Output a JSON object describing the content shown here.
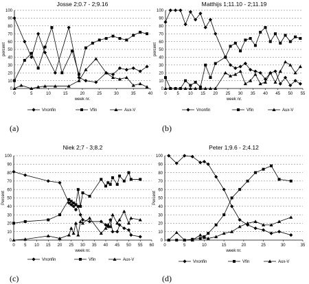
{
  "figure": {
    "captions": [
      "(a)",
      "(b)",
      "(c)",
      "(d)"
    ]
  },
  "chart_data": [
    {
      "type": "line",
      "title": "Josse 2;0.7 - 2;9.16",
      "xlabel": "week nr.",
      "ylabel": "percent",
      "xlim": [
        0,
        40
      ],
      "ylim": [
        0,
        100
      ],
      "xticks": [
        0,
        5,
        10,
        15,
        20,
        25,
        30,
        35,
        40
      ],
      "yticks": [
        0,
        10,
        20,
        30,
        40,
        50,
        60,
        70,
        80,
        90,
        100
      ],
      "grid": "horizontal dashed",
      "legend": "bottom",
      "series": [
        {
          "name": "Vnonfin",
          "marker": "diamond",
          "x": [
            0,
            3,
            5,
            7,
            9,
            12,
            16,
            19,
            21,
            24,
            27,
            29,
            31,
            33,
            35,
            37,
            39
          ],
          "y": [
            90,
            60,
            40,
            70,
            46,
            20,
            78,
            14,
            10,
            8,
            20,
            18,
            26,
            24,
            26,
            22,
            28
          ]
        },
        {
          "name": "Vfin",
          "marker": "square",
          "x": [
            0,
            3,
            5,
            7,
            9,
            11,
            14,
            17,
            19,
            21,
            23,
            25,
            27,
            29,
            31,
            33,
            35,
            37,
            39
          ],
          "y": [
            10,
            36,
            45,
            26,
            53,
            78,
            20,
            48,
            18,
            52,
            58,
            62,
            64,
            67,
            64,
            62,
            68,
            72,
            70
          ]
        },
        {
          "name": "Aux-V",
          "marker": "triangle",
          "x": [
            0,
            2,
            5,
            7,
            9,
            12,
            16,
            19,
            21,
            24,
            27,
            29,
            31,
            33,
            35,
            37,
            39
          ],
          "y": [
            0,
            4,
            0,
            2,
            3,
            3,
            3,
            10,
            24,
            38,
            20,
            14,
            12,
            14,
            4,
            6,
            2
          ]
        }
      ]
    },
    {
      "type": "line",
      "title": "Matthijs 1;11.10 - 2;11.19",
      "xlabel": "week nr.",
      "ylabel": "percent",
      "xlim": [
        0,
        55
      ],
      "ylim": [
        0,
        100
      ],
      "xticks": [
        0,
        5,
        10,
        15,
        20,
        25,
        30,
        35,
        40,
        45,
        50,
        55
      ],
      "yticks": [
        0,
        10,
        20,
        30,
        40,
        50,
        60,
        70,
        80,
        90,
        100
      ],
      "grid": "horizontal dashed",
      "legend": "bottom",
      "series": [
        {
          "name": "Vnonfin",
          "marker": "diamond",
          "x": [
            0,
            2,
            4,
            6,
            8,
            10,
            12,
            14,
            16,
            18,
            20,
            24,
            26,
            28,
            30,
            32,
            34,
            36,
            38,
            40,
            42,
            44,
            46,
            48,
            50,
            52,
            54
          ],
          "y": [
            85,
            100,
            100,
            100,
            82,
            98,
            88,
            96,
            78,
            88,
            70,
            40,
            30,
            26,
            28,
            32,
            24,
            22,
            20,
            12,
            20,
            22,
            6,
            14,
            4,
            10,
            6
          ]
        },
        {
          "name": "Vfin",
          "marker": "square",
          "x": [
            0,
            2,
            4,
            6,
            8,
            10,
            12,
            14,
            16,
            18,
            20,
            24,
            26,
            28,
            30,
            32,
            34,
            36,
            38,
            40,
            42,
            44,
            46,
            48,
            50,
            52,
            54
          ],
          "y": [
            14,
            0,
            0,
            0,
            10,
            4,
            8,
            2,
            30,
            14,
            32,
            40,
            54,
            58,
            48,
            62,
            64,
            55,
            72,
            78,
            60,
            70,
            58,
            68,
            60,
            66,
            64
          ]
        },
        {
          "name": "Aux-V",
          "marker": "triangle",
          "x": [
            0,
            2,
            4,
            6,
            8,
            10,
            12,
            14,
            16,
            18,
            20,
            24,
            26,
            28,
            30,
            32,
            34,
            36,
            38,
            40,
            42,
            44,
            46,
            48,
            50,
            52,
            54
          ],
          "y": [
            0,
            0,
            0,
            0,
            0,
            0,
            0,
            0,
            0,
            0,
            0,
            20,
            16,
            18,
            22,
            6,
            10,
            18,
            6,
            8,
            20,
            8,
            22,
            34,
            30,
            20,
            28
          ]
        }
      ]
    },
    {
      "type": "line",
      "title": "Niek 2;7 - 3;8.2",
      "xlabel": "week nr.",
      "ylabel": "Percent",
      "xlim": [
        0,
        60
      ],
      "ylim": [
        0,
        100
      ],
      "xticks": [
        0,
        5,
        10,
        15,
        20,
        25,
        30,
        35,
        40,
        45,
        50,
        55,
        60
      ],
      "yticks": [
        0,
        10,
        20,
        30,
        40,
        50,
        60,
        70,
        80,
        90,
        100
      ],
      "grid": "horizontal dashed",
      "legend": "bottom",
      "series": [
        {
          "name": "Vnonfin",
          "marker": "diamond",
          "x": [
            0,
            5,
            15,
            20,
            24,
            25,
            26,
            27,
            28,
            29,
            30,
            33,
            38,
            40,
            41,
            42,
            43,
            45,
            46,
            48,
            50,
            51,
            55
          ],
          "y": [
            81,
            77,
            70,
            68,
            44,
            42,
            40,
            36,
            40,
            30,
            24,
            22,
            22,
            18,
            16,
            24,
            10,
            10,
            18,
            14,
            12,
            6,
            4
          ]
        },
        {
          "name": "Vfin",
          "marker": "square",
          "x": [
            0,
            5,
            15,
            20,
            24,
            25,
            26,
            27,
            28,
            29,
            30,
            33,
            38,
            40,
            41,
            42,
            43,
            45,
            46,
            48,
            50,
            51,
            55
          ],
          "y": [
            20,
            22,
            24,
            30,
            48,
            46,
            44,
            42,
            60,
            40,
            56,
            52,
            72,
            64,
            68,
            66,
            74,
            66,
            76,
            70,
            80,
            72,
            72
          ]
        },
        {
          "name": "Aux-V",
          "marker": "triangle",
          "x": [
            0,
            5,
            15,
            20,
            24,
            25,
            26,
            27,
            28,
            29,
            30,
            33,
            38,
            40,
            41,
            42,
            43,
            45,
            46,
            48,
            50,
            51,
            55
          ],
          "y": [
            0,
            1,
            5,
            2,
            6,
            14,
            8,
            20,
            6,
            22,
            20,
            26,
            8,
            14,
            18,
            16,
            30,
            20,
            24,
            34,
            20,
            26,
            24
          ]
        }
      ]
    },
    {
      "type": "line",
      "title": "Peter 1;9.6 - 2;4.12",
      "xlabel": "week nr.",
      "ylabel": "Percent",
      "xlim": [
        0,
        35
      ],
      "ylim": [
        0,
        100
      ],
      "xticks": [
        0,
        5,
        10,
        15,
        20,
        25,
        30,
        35
      ],
      "yticks": [
        0,
        10,
        20,
        30,
        40,
        50,
        60,
        70,
        80,
        90,
        100
      ],
      "grid": "horizontal dashed",
      "legend": "bottom",
      "series": [
        {
          "name": "Vnonfin",
          "marker": "diamond",
          "x": [
            1,
            3,
            5,
            7,
            9,
            10,
            11,
            13,
            15,
            17,
            19,
            21,
            23,
            25,
            27,
            29,
            32
          ],
          "y": [
            100,
            91,
            100,
            99,
            92,
            93,
            90,
            75,
            60,
            40,
            24,
            18,
            14,
            12,
            8,
            10,
            6
          ]
        },
        {
          "name": "Vfin",
          "marker": "square",
          "x": [
            1,
            3,
            5,
            7,
            9,
            10,
            11,
            13,
            15,
            17,
            19,
            21,
            23,
            25,
            27,
            29,
            32
          ],
          "y": [
            0,
            0,
            0,
            1,
            2,
            4,
            8,
            18,
            30,
            50,
            60,
            70,
            80,
            84,
            88,
            72,
            70
          ]
        },
        {
          "name": "Aux-V",
          "marker": "triangle",
          "x": [
            1,
            3,
            5,
            7,
            9,
            10,
            11,
            13,
            15,
            17,
            19,
            21,
            23,
            25,
            27,
            29,
            32
          ],
          "y": [
            0,
            9,
            0,
            0,
            6,
            3,
            2,
            4,
            8,
            10,
            16,
            20,
            22,
            18,
            18,
            22,
            27
          ]
        }
      ]
    }
  ]
}
